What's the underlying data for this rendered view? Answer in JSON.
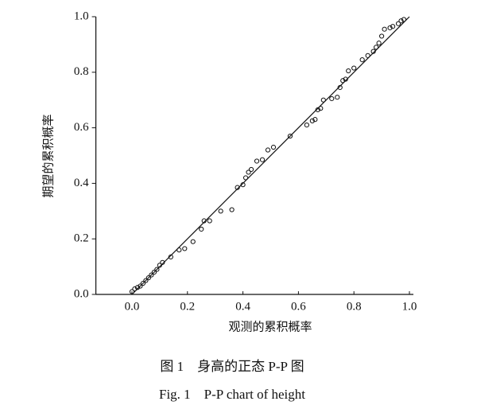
{
  "chart_data": {
    "type": "scatter",
    "x_label": "观测的累积概率",
    "y_label": "期望的累积概率",
    "caption_cn": "图 1　身高的正态 P-P 图",
    "caption_en": "Fig. 1　P-P chart of height",
    "xlim": [
      -0.13,
      1.0
    ],
    "ylim": [
      0,
      1.0
    ],
    "xticks": [
      {
        "value": 0,
        "label": "0.0"
      },
      0.2,
      0.4,
      0.6,
      0.8,
      {
        "value": 1,
        "label": "1.0"
      }
    ],
    "yticks": [
      {
        "value": 0,
        "label": "0.0"
      },
      0.2,
      0.4,
      0.6,
      0.8,
      {
        "value": 1,
        "label": "1.0"
      }
    ],
    "color": "#111111",
    "reference_line": {
      "x": [
        0,
        1
      ],
      "y": [
        0,
        1
      ]
    },
    "x": [
      0.0,
      0.01,
      0.02,
      0.03,
      0.04,
      0.05,
      0.06,
      0.07,
      0.08,
      0.09,
      0.1,
      0.11,
      0.14,
      0.17,
      0.19,
      0.22,
      0.25,
      0.26,
      0.28,
      0.32,
      0.36,
      0.38,
      0.4,
      0.41,
      0.42,
      0.43,
      0.45,
      0.47,
      0.49,
      0.51,
      0.57,
      0.63,
      0.65,
      0.66,
      0.67,
      0.68,
      0.69,
      0.72,
      0.74,
      0.75,
      0.76,
      0.77,
      0.78,
      0.8,
      0.83,
      0.85,
      0.87,
      0.88,
      0.89,
      0.9,
      0.91,
      0.93,
      0.94,
      0.96,
      0.97,
      0.98
    ],
    "y": [
      0.01,
      0.02,
      0.025,
      0.03,
      0.04,
      0.05,
      0.06,
      0.07,
      0.08,
      0.09,
      0.105,
      0.115,
      0.135,
      0.16,
      0.165,
      0.19,
      0.235,
      0.265,
      0.265,
      0.3,
      0.305,
      0.385,
      0.395,
      0.42,
      0.44,
      0.45,
      0.48,
      0.485,
      0.52,
      0.53,
      0.57,
      0.61,
      0.625,
      0.63,
      0.665,
      0.67,
      0.7,
      0.705,
      0.71,
      0.745,
      0.77,
      0.775,
      0.805,
      0.815,
      0.845,
      0.86,
      0.875,
      0.89,
      0.905,
      0.93,
      0.955,
      0.96,
      0.965,
      0.975,
      0.985,
      0.99
    ]
  }
}
